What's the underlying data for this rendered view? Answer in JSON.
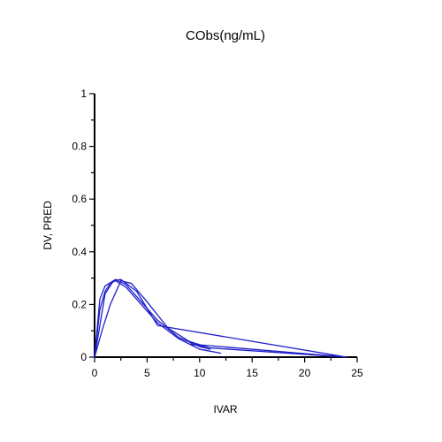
{
  "chart_data": {
    "type": "line",
    "title": "CObs(ng/mL)",
    "xlabel": "IVAR",
    "ylabel": "DV, PRED",
    "xlim": [
      0,
      25
    ],
    "ylim": [
      0,
      1
    ],
    "x_ticks": [
      0,
      5,
      10,
      15,
      20,
      25
    ],
    "x_tick_labels": [
      "0",
      "5",
      "10",
      "15",
      "20",
      "25"
    ],
    "y_ticks": [
      0,
      0.2,
      0.4,
      0.6,
      0.8,
      1
    ],
    "y_tick_labels": [
      "0",
      "0.2",
      "0.4",
      "0.6",
      "0.8",
      "1"
    ],
    "grid": false,
    "legend": "none",
    "series_color": "#1f1fc8",
    "series": [
      {
        "x": [
          0,
          0.5,
          1,
          1.5,
          2,
          3,
          4,
          6,
          8,
          10,
          12
        ],
        "y": [
          0,
          0.18,
          0.25,
          0.28,
          0.29,
          0.265,
          0.22,
          0.13,
          0.07,
          0.03,
          0.015
        ]
      },
      {
        "x": [
          0,
          0.5,
          1,
          2,
          3,
          4,
          6,
          8,
          10,
          11
        ],
        "y": [
          0,
          0.22,
          0.27,
          0.295,
          0.275,
          0.23,
          0.14,
          0.075,
          0.04,
          0.03
        ]
      },
      {
        "x": [
          0,
          0.7,
          1.5,
          2.5,
          3.5,
          5,
          7,
          9,
          11,
          24
        ],
        "y": [
          0,
          0.1,
          0.2,
          0.29,
          0.28,
          0.21,
          0.11,
          0.06,
          0.035,
          0
        ]
      },
      {
        "x": [
          0,
          1,
          1.8,
          2.5,
          4,
          6,
          24,
          9,
          10.5
        ],
        "y": [
          0,
          0.24,
          0.29,
          0.295,
          0.25,
          0.12,
          0,
          0.05,
          0.04
        ]
      }
    ]
  }
}
